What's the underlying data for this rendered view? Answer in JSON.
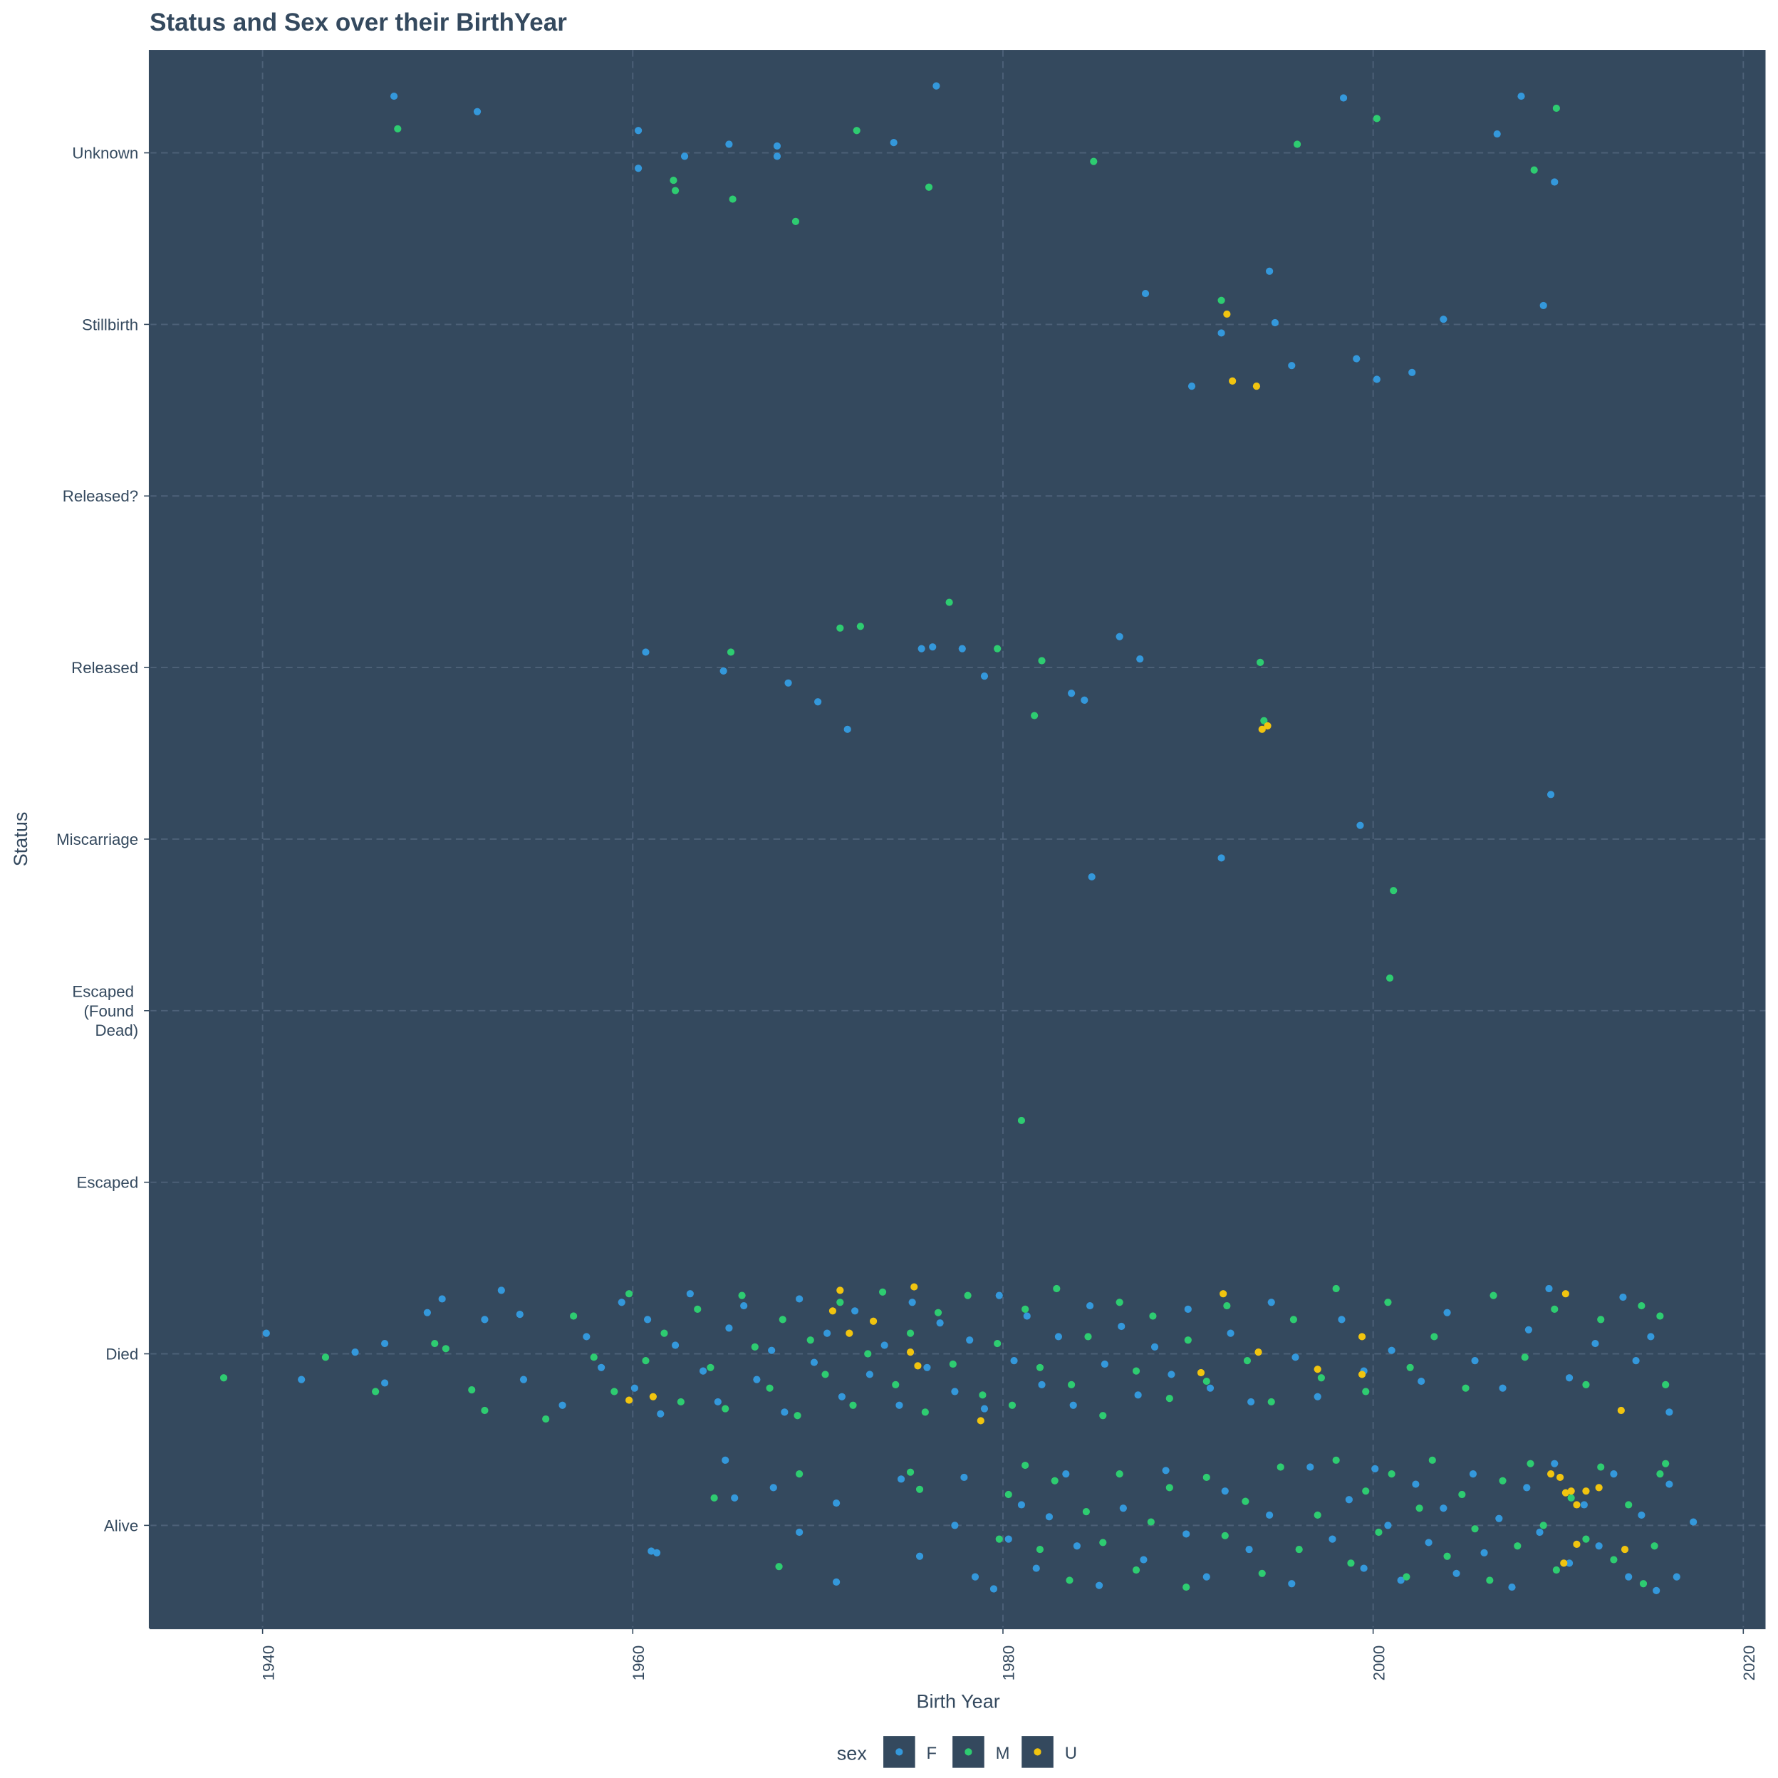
{
  "chart_data": {
    "type": "scatter",
    "title": "Status and Sex over their BirthYear",
    "x_label": "Birth Year",
    "y_label": "Status",
    "legend_title": "sex",
    "legend_position": "bottom",
    "grid": true,
    "xlim": [
      1933.9,
      2021.2
    ],
    "xticks": [
      1940,
      1960,
      1980,
      2000,
      2020
    ],
    "ylim": [
      0.4,
      9.6
    ],
    "yticks": [
      {
        "value": 1,
        "label": "Alive"
      },
      {
        "value": 2,
        "label": "Died"
      },
      {
        "value": 3,
        "label": "Escaped"
      },
      {
        "value": 4,
        "label": "Escaped (Found Dead)"
      },
      {
        "value": 5,
        "label": "Miscarriage"
      },
      {
        "value": 6,
        "label": "Released"
      },
      {
        "value": 7,
        "label": "Released?"
      },
      {
        "value": 8,
        "label": "Stillbirth"
      },
      {
        "value": 9,
        "label": "Unknown"
      }
    ],
    "series": [
      {
        "name": "F",
        "color": "#3498db",
        "x": [
          1947.1,
          1951.6,
          1960.3,
          1960.3,
          1962.8,
          1965.2,
          1967.8,
          1967.8,
          1974.1,
          1976.4,
          1998.4,
          2008.0,
          2006.7,
          2009.8,
          1994.4,
          1987.7,
          1991.8,
          1994.7,
          2003.8,
          2009.2,
          1995.6,
          1999.1,
          2002.1,
          1990.2,
          2000.2,
          1960.7,
          1964.9,
          1968.4,
          1970.0,
          1971.6,
          1975.6,
          1976.2,
          1977.8,
          1979.0,
          1983.7,
          1984.4,
          1986.3,
          1987.4,
          2009.6,
          1999.3,
          1991.8,
          1984.8,
          1940.2,
          1942.1,
          1945.0,
          1946.6,
          1946.6,
          1948.9,
          1949.7,
          1952.0,
          1952.9,
          1953.9,
          1954.1,
          1956.2,
          1957.5,
          1958.3,
          1959.4,
          1960.1,
          1960.8,
          1961.5,
          1962.3,
          1963.1,
          1963.8,
          1964.6,
          1965.2,
          1966.0,
          1966.7,
          1967.5,
          1968.2,
          1969.0,
          1969.8,
          1970.5,
          1971.3,
          1972.0,
          1972.8,
          1973.6,
          1974.4,
          1975.1,
          1975.9,
          1976.6,
          1977.4,
          1978.2,
          1979.0,
          1979.8,
          1980.6,
          1981.3,
          1982.1,
          1983.0,
          1983.8,
          1984.7,
          1985.5,
          1986.4,
          1987.3,
          1988.2,
          1989.1,
          1990.0,
          1991.2,
          1992.3,
          1993.4,
          1994.5,
          1995.8,
          1997.0,
          1998.3,
          1999.5,
          2001.0,
          2002.6,
          2004.0,
          2005.5,
          2007.0,
          2008.4,
          2009.5,
          2010.6,
          2012.0,
          2013.5,
          2014.2,
          2015.0,
          2016.0,
          1961.0,
          1961.3,
          1965.0,
          1965.5,
          1967.6,
          1969.0,
          1971.0,
          1971.0,
          1974.5,
          1975.5,
          1977.4,
          1977.9,
          1978.5,
          1979.5,
          1980.3,
          1981.0,
          1981.8,
          1982.5,
          1983.4,
          1984.0,
          1985.2,
          1986.5,
          1987.6,
          1988.8,
          1989.9,
          1991.0,
          1992.0,
          1993.3,
          1994.4,
          1995.6,
          1996.6,
          1997.8,
          1998.7,
          1999.5,
          2000.1,
          2000.8,
          2001.5,
          2002.3,
          2003.0,
          2003.8,
          2004.5,
          2005.4,
          2006.0,
          2006.8,
          2007.5,
          2008.3,
          2009.0,
          2009.8,
          2010.6,
          2011.4,
          2012.2,
          2013.0,
          2013.8,
          2014.5,
          2015.3,
          2016.0,
          2016.4,
          2017.3
        ],
        "values": [
          9.33,
          9.24,
          9.13,
          8.91,
          8.98,
          9.05,
          9.04,
          8.98,
          9.06,
          9.39,
          9.32,
          9.33,
          9.11,
          8.83,
          8.31,
          8.18,
          7.95,
          8.01,
          8.03,
          8.11,
          7.76,
          7.8,
          7.72,
          7.64,
          7.68,
          6.09,
          5.98,
          5.91,
          5.8,
          5.64,
          6.11,
          6.12,
          6.11,
          5.95,
          5.85,
          5.81,
          6.18,
          6.05,
          5.26,
          5.08,
          4.89,
          4.78,
          2.12,
          1.85,
          2.01,
          2.06,
          1.83,
          2.24,
          2.32,
          2.2,
          2.37,
          2.23,
          1.85,
          1.7,
          2.1,
          1.92,
          2.3,
          1.8,
          2.2,
          1.65,
          2.05,
          2.35,
          1.9,
          1.72,
          2.15,
          2.28,
          1.85,
          2.02,
          1.66,
          2.32,
          1.95,
          2.12,
          1.75,
          2.25,
          1.88,
          2.05,
          1.7,
          2.3,
          1.92,
          2.18,
          1.78,
          2.08,
          1.68,
          2.34,
          1.96,
          2.22,
          1.82,
          2.1,
          1.7,
          2.28,
          1.94,
          2.16,
          1.76,
          2.04,
          1.88,
          2.26,
          1.8,
          2.12,
          1.72,
          2.3,
          1.98,
          1.75,
          2.2,
          1.9,
          2.02,
          1.84,
          2.24,
          1.96,
          1.8,
          2.14,
          2.38,
          1.86,
          2.06,
          2.33,
          1.96,
          2.1,
          1.66,
          0.85,
          0.84,
          1.38,
          1.16,
          1.22,
          0.96,
          1.13,
          0.67,
          1.27,
          0.82,
          1.0,
          1.28,
          0.7,
          0.63,
          0.92,
          1.12,
          0.75,
          1.05,
          1.3,
          0.88,
          0.65,
          1.1,
          0.8,
          1.32,
          0.95,
          0.7,
          1.2,
          0.86,
          1.06,
          0.66,
          1.34,
          0.92,
          1.15,
          0.75,
          1.33,
          1.0,
          0.68,
          1.24,
          0.9,
          1.1,
          0.72,
          1.3,
          0.84,
          1.04,
          0.64,
          1.22,
          0.96,
          1.36,
          0.78,
          1.12,
          0.88,
          1.3,
          0.7,
          1.06,
          0.62,
          1.24,
          0.7,
          1.02
        ]
      },
      {
        "name": "M",
        "color": "#2ecc71",
        "x": [
          1947.3,
          1962.2,
          1962.3,
          1965.4,
          1968.8,
          1972.1,
          1976.0,
          1984.9,
          1995.9,
          2000.2,
          2008.7,
          2009.9,
          1991.8,
          1965.3,
          1971.2,
          1972.3,
          1977.1,
          1979.7,
          1982.1,
          1981.7,
          1993.9,
          1994.1,
          2001.1,
          2000.9,
          1981.0,
          1937.9,
          1943.4,
          1946.1,
          1949.3,
          1949.9,
          1951.3,
          1952.0,
          1955.3,
          1956.8,
          1957.9,
          1959.0,
          1959.8,
          1960.7,
          1961.7,
          1962.6,
          1963.5,
          1964.2,
          1965.0,
          1965.9,
          1966.6,
          1967.4,
          1968.1,
          1968.9,
          1969.6,
          1970.4,
          1971.2,
          1971.9,
          1972.7,
          1973.5,
          1974.2,
          1975.0,
          1975.8,
          1976.5,
          1977.3,
          1978.1,
          1978.9,
          1979.7,
          1980.5,
          1981.2,
          1982.0,
          1982.9,
          1983.7,
          1984.6,
          1985.4,
          1986.3,
          1987.2,
          1988.1,
          1989.0,
          1990.0,
          1991.0,
          1992.1,
          1993.2,
          1994.5,
          1995.7,
          1997.2,
          1998.0,
          1999.6,
          2000.8,
          2002.0,
          2003.3,
          2005.0,
          2006.5,
          2008.2,
          2009.8,
          2011.5,
          2012.3,
          2014.5,
          2015.5,
          2015.8,
          1964.4,
          1967.9,
          1969.0,
          1975.0,
          1975.5,
          1979.8,
          1980.3,
          1981.2,
          1982.0,
          1982.8,
          1983.6,
          1984.5,
          1985.4,
          1986.3,
          1987.2,
          1988.0,
          1989.0,
          1989.9,
          1991.0,
          1992.0,
          1993.1,
          1994.0,
          1995.0,
          1996.0,
          1997.0,
          1998.0,
          1998.8,
          1999.6,
          2000.3,
          2001.0,
          2001.8,
          2002.5,
          2003.2,
          2004.0,
          2004.8,
          2005.5,
          2006.3,
          2007.0,
          2007.8,
          2008.5,
          2009.2,
          2009.9,
          2010.7,
          2011.5,
          2012.3,
          2013.0,
          2013.8,
          2014.6,
          2015.5,
          2015.8,
          2015.2
        ],
        "values": [
          9.14,
          8.84,
          8.78,
          8.73,
          8.6,
          9.13,
          8.8,
          8.95,
          9.05,
          9.2,
          8.9,
          9.26,
          8.14,
          6.09,
          6.23,
          6.24,
          6.38,
          6.11,
          6.04,
          5.72,
          6.03,
          5.69,
          4.7,
          4.19,
          3.36,
          1.86,
          1.98,
          1.78,
          2.06,
          2.03,
          1.79,
          1.67,
          1.62,
          2.22,
          1.98,
          1.78,
          2.35,
          1.96,
          2.12,
          1.72,
          2.26,
          1.92,
          1.68,
          2.34,
          2.04,
          1.8,
          2.2,
          1.64,
          2.08,
          1.88,
          2.3,
          1.7,
          2.0,
          2.36,
          1.82,
          2.12,
          1.66,
          2.24,
          1.94,
          2.34,
          1.76,
          2.06,
          1.7,
          2.26,
          1.92,
          2.38,
          1.82,
          2.1,
          1.64,
          2.3,
          1.9,
          2.22,
          1.74,
          2.08,
          1.84,
          2.28,
          1.96,
          1.72,
          2.2,
          1.86,
          2.38,
          1.78,
          2.3,
          1.92,
          2.1,
          1.8,
          2.34,
          1.98,
          2.26,
          1.82,
          2.2,
          2.28,
          2.22,
          1.82,
          1.16,
          0.76,
          1.3,
          1.31,
          1.21,
          0.92,
          1.18,
          1.35,
          0.86,
          1.26,
          0.68,
          1.08,
          0.9,
          1.3,
          0.74,
          1.02,
          1.22,
          0.64,
          1.28,
          0.94,
          1.14,
          0.72,
          1.34,
          0.86,
          1.06,
          1.38,
          0.78,
          1.2,
          0.96,
          1.3,
          0.7,
          1.1,
          1.38,
          0.82,
          1.18,
          0.98,
          0.68,
          1.26,
          0.88,
          1.36,
          1.0,
          0.74,
          1.16,
          0.92,
          1.34,
          0.8,
          1.12,
          0.66,
          1.3,
          1.36,
          0.88
        ]
      },
      {
        "name": "U",
        "color": "#f1c40f",
        "x": [
          1992.1,
          1992.4,
          1993.7,
          1994.0,
          1994.3,
          1959.8,
          1961.1,
          1971.2,
          1971.7,
          1970.8,
          1973.0,
          1975.2,
          1975.0,
          1975.4,
          1978.8,
          1991.9,
          1993.8,
          1990.7,
          1997.0,
          1999.4,
          1999.4,
          2010.4,
          2013.4,
          2009.6,
          2010.1,
          2010.7,
          2010.4,
          2011.0,
          2011.5,
          2012.2,
          2011.0,
          2010.3,
          2013.6
        ],
        "values": [
          8.06,
          7.67,
          7.64,
          5.64,
          5.66,
          1.73,
          1.75,
          2.37,
          2.12,
          2.25,
          2.19,
          2.39,
          2.01,
          1.93,
          1.61,
          2.35,
          2.01,
          1.89,
          1.91,
          2.1,
          1.88,
          2.35,
          1.67,
          1.3,
          1.28,
          1.2,
          1.19,
          1.12,
          1.2,
          1.22,
          0.89,
          0.78,
          0.86
        ]
      }
    ]
  }
}
